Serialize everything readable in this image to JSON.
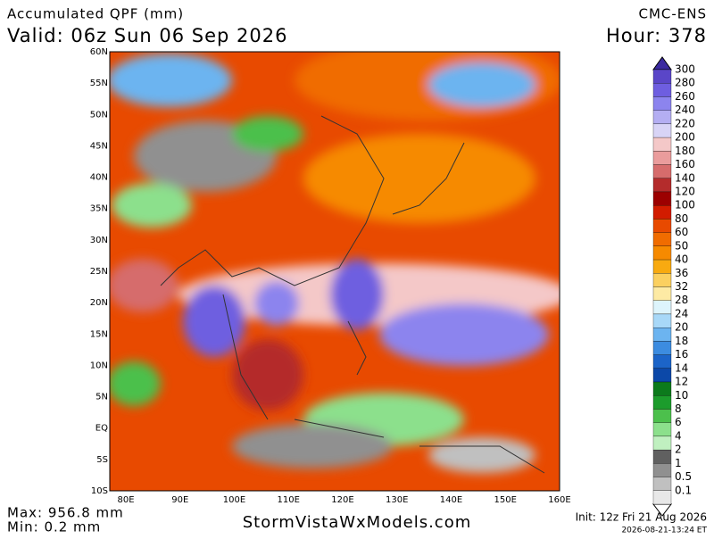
{
  "header": {
    "title": "Accumulated QPF (mm)",
    "valid": "Valid: 06z Sun 06 Sep 2026",
    "model": "CMC-ENS",
    "hour": "Hour: 378"
  },
  "map": {
    "lat_labels": [
      "60N",
      "55N",
      "50N",
      "45N",
      "40N",
      "35N",
      "30N",
      "25N",
      "20N",
      "15N",
      "10N",
      "5N",
      "EQ",
      "5S",
      "10S"
    ],
    "lon_labels": [
      "80E",
      "90E",
      "100E",
      "110E",
      "120E",
      "130E",
      "140E",
      "150E",
      "160E"
    ]
  },
  "colorbar": {
    "levels": [
      {
        "label": "300",
        "color": "#5a46c8"
      },
      {
        "label": "280",
        "color": "#6e5ee0"
      },
      {
        "label": "260",
        "color": "#8c84ee"
      },
      {
        "label": "240",
        "color": "#b4aef2"
      },
      {
        "label": "220",
        "color": "#d8d4f6"
      },
      {
        "label": "200",
        "color": "#f4c8c8"
      },
      {
        "label": "180",
        "color": "#ea9c9c"
      },
      {
        "label": "160",
        "color": "#d66c6c"
      },
      {
        "label": "140",
        "color": "#b42c2c"
      },
      {
        "label": "120",
        "color": "#9c0000"
      },
      {
        "label": "100",
        "color": "#d21c00"
      },
      {
        "label": "80",
        "color": "#e84a00"
      },
      {
        "label": "60",
        "color": "#f06c00"
      },
      {
        "label": "50",
        "color": "#f68a00"
      },
      {
        "label": "40",
        "color": "#f8aa10"
      },
      {
        "label": "36",
        "color": "#fbd060"
      },
      {
        "label": "32",
        "color": "#fdeaa4"
      },
      {
        "label": "28",
        "color": "#ddf4fc"
      },
      {
        "label": "24",
        "color": "#a8d8f8"
      },
      {
        "label": "20",
        "color": "#6cb4f0"
      },
      {
        "label": "18",
        "color": "#3c8ce0"
      },
      {
        "label": "16",
        "color": "#1c64c8"
      },
      {
        "label": "14",
        "color": "#0c48a8"
      },
      {
        "label": "12",
        "color": "#0c7a1c"
      },
      {
        "label": "10",
        "color": "#1c9c2c"
      },
      {
        "label": "8",
        "color": "#4cc04c"
      },
      {
        "label": "6",
        "color": "#8ce08c"
      },
      {
        "label": "4",
        "color": "#c0f0c0"
      },
      {
        "label": "2",
        "color": "#606060"
      },
      {
        "label": "1",
        "color": "#909090"
      },
      {
        "label": "0.5",
        "color": "#c0c0c0"
      },
      {
        "label": "0.1",
        "color": "#e8e8e8"
      }
    ]
  },
  "footer": {
    "max": "Max: 956.8 mm",
    "min": "Min: 0.2 mm",
    "site": "StormVistaWxModels.com",
    "init": "Init: 12z Fri 21 Aug 2026",
    "timestamp": "2026-08-21-13:24 ET"
  }
}
